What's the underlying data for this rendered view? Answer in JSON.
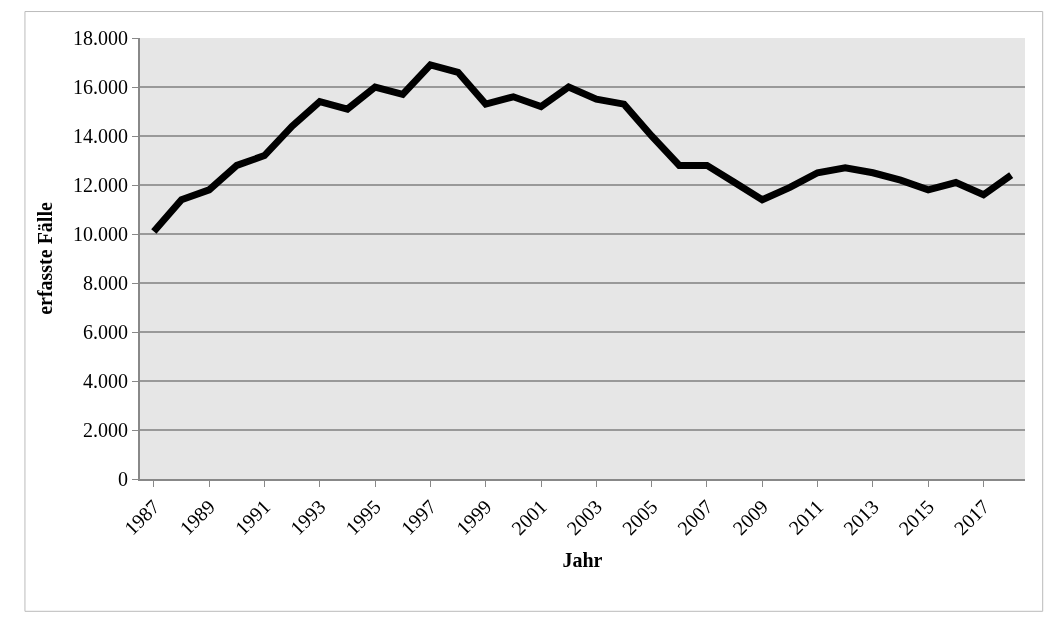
{
  "chart_data": {
    "type": "line",
    "xlabel": "Jahr",
    "ylabel": "erfasste Fälle",
    "categories": [
      "1987",
      null,
      "1989",
      null,
      "1991",
      null,
      "1993",
      null,
      "1995",
      null,
      "1997",
      null,
      "1999",
      null,
      "2001",
      null,
      "2003",
      null,
      "2005",
      null,
      "2007",
      null,
      "2009",
      null,
      "2011",
      null,
      "2013",
      null,
      "2015",
      null,
      "2017",
      null
    ],
    "series": [
      {
        "color": "#000000",
        "values": [
          10100,
          11400,
          11800,
          12800,
          13200,
          14400,
          15400,
          15100,
          16000,
          15700,
          16900,
          16600,
          15300,
          15600,
          15200,
          16000,
          15500,
          15300,
          14000,
          12800,
          12800,
          12100,
          11400,
          11900,
          12500,
          12700,
          12500,
          12200,
          11800,
          12100,
          11600,
          12400
        ]
      }
    ],
    "ylim": [
      0,
      18000
    ],
    "yticks": [
      {
        "value": 0,
        "label": "0"
      },
      {
        "value": 2000,
        "label": "2.000"
      },
      {
        "value": 4000,
        "label": "4.000"
      },
      {
        "value": 6000,
        "label": "6.000"
      },
      {
        "value": 8000,
        "label": "8.000"
      },
      {
        "value": 10000,
        "label": "10.000"
      },
      {
        "value": 12000,
        "label": "12.000"
      },
      {
        "value": 14000,
        "label": "14.000"
      },
      {
        "value": 16000,
        "label": "16.000"
      },
      {
        "value": 18000,
        "label": "18.000"
      }
    ],
    "grid": "y",
    "legend": false,
    "marker": "none",
    "line_style": "solid"
  }
}
